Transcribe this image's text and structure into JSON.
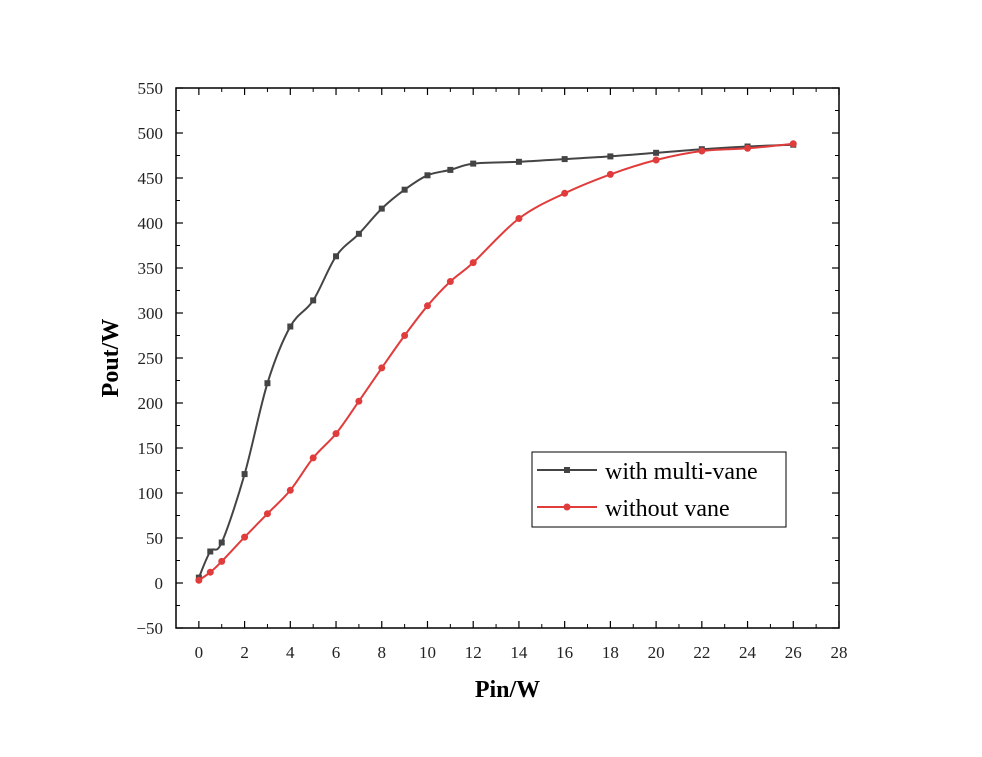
{
  "chart_data": {
    "type": "line",
    "xlabel": "Pin/W",
    "ylabel": "Pout/W",
    "xlim": [
      -1,
      28
    ],
    "ylim": [
      -50,
      550
    ],
    "xticks": [
      0,
      2,
      4,
      6,
      8,
      10,
      12,
      14,
      16,
      18,
      20,
      22,
      24,
      26,
      28
    ],
    "yticks": [
      -50,
      0,
      50,
      100,
      150,
      200,
      250,
      300,
      350,
      400,
      450,
      500,
      550
    ],
    "x_tick_labels": [
      "0",
      "2",
      "4",
      "6",
      "8",
      "10",
      "12",
      "14",
      "16",
      "18",
      "20",
      "22",
      "24",
      "26",
      "28"
    ],
    "y_tick_labels": [
      "−50",
      "0",
      "50",
      "100",
      "150",
      "200",
      "250",
      "300",
      "350",
      "400",
      "450",
      "500",
      "550"
    ],
    "grid": false,
    "legend_position": "lower-right",
    "series": [
      {
        "name": "with multi-vane",
        "color": "#444444",
        "marker": "square",
        "x": [
          0,
          0.5,
          1,
          2,
          3,
          4,
          5,
          6,
          7,
          8,
          9,
          10,
          11,
          12,
          14,
          16,
          18,
          20,
          22,
          24,
          26
        ],
        "y": [
          6,
          35,
          45,
          121,
          222,
          285,
          314,
          363,
          388,
          416,
          437,
          453,
          459,
          466,
          468,
          471,
          474,
          478,
          482,
          485,
          487
        ]
      },
      {
        "name": "without vane",
        "color": "#e03c3c",
        "marker": "circle",
        "x": [
          0,
          0.5,
          1,
          2,
          3,
          4,
          5,
          6,
          7,
          8,
          9,
          10,
          11,
          12,
          14,
          16,
          18,
          20,
          22,
          24,
          26
        ],
        "y": [
          3,
          12,
          24,
          51,
          77,
          103,
          139,
          166,
          202,
          239,
          275,
          308,
          335,
          356,
          405,
          433,
          454,
          470,
          480,
          483,
          488
        ]
      }
    ]
  }
}
